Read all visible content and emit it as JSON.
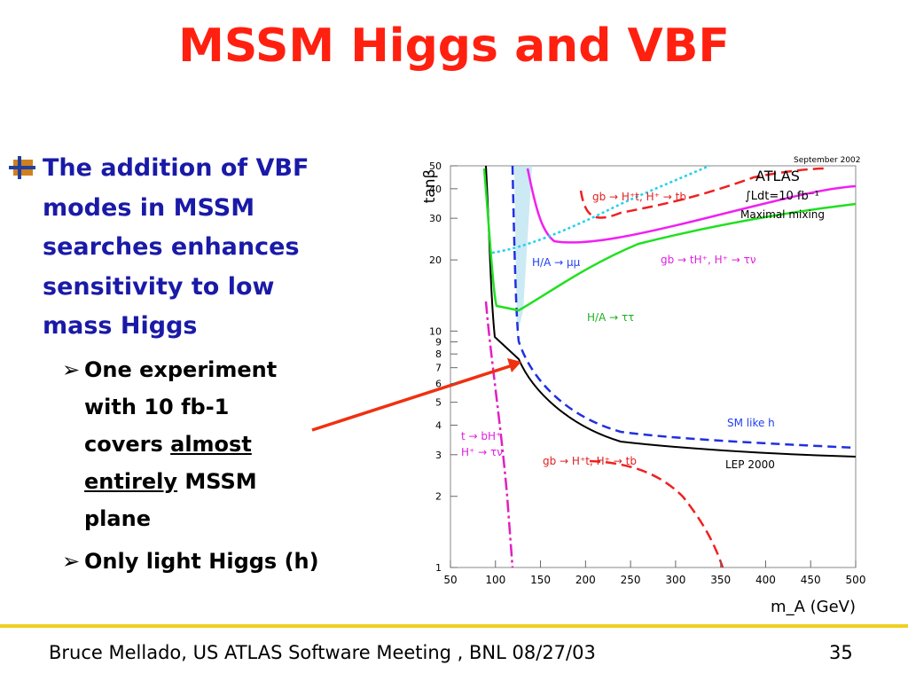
{
  "title": "MSSM Higgs and VBF",
  "bullet": {
    "lines": [
      "The addition of VBF",
      "modes in MSSM",
      "searches enhances",
      "sensitivity to low",
      "mass Higgs"
    ]
  },
  "sub_bullets": [
    {
      "lines": [
        "One experiment",
        "with 10 fb-1",
        [
          "covers ",
          "almost"
        ],
        [
          "entirely",
          " MSSM"
        ],
        "plane"
      ]
    },
    {
      "lines": [
        "Only light Higgs (h)"
      ]
    }
  ],
  "figure": {
    "ylabel": "tanβ",
    "xlabel": "m_A (GeV)",
    "xticks": [
      50,
      100,
      150,
      200,
      250,
      300,
      350,
      400,
      450,
      500
    ],
    "yticks": [
      1,
      2,
      3,
      4,
      5,
      6,
      7,
      8,
      9,
      10,
      20,
      30,
      40,
      50
    ],
    "annotations": [
      "September 2002",
      "ATLAS",
      "∫Ldt=10 fb⁻¹",
      "Maximal mixing",
      "gb → H⁺t, H⁺ → tb",
      "H/A → μμ",
      "gb → tH⁺, H⁺ → τν",
      "H/A → ττ",
      "SM like h",
      "t → bH⁺",
      "H⁺ → τν",
      "gb → H⁺t, H⁺ → tb",
      "LEP 2000"
    ]
  },
  "footer": {
    "text": "Bruce Mellado, US ATLAS Software Meeting , BNL 08/27/03",
    "page": "35"
  }
}
